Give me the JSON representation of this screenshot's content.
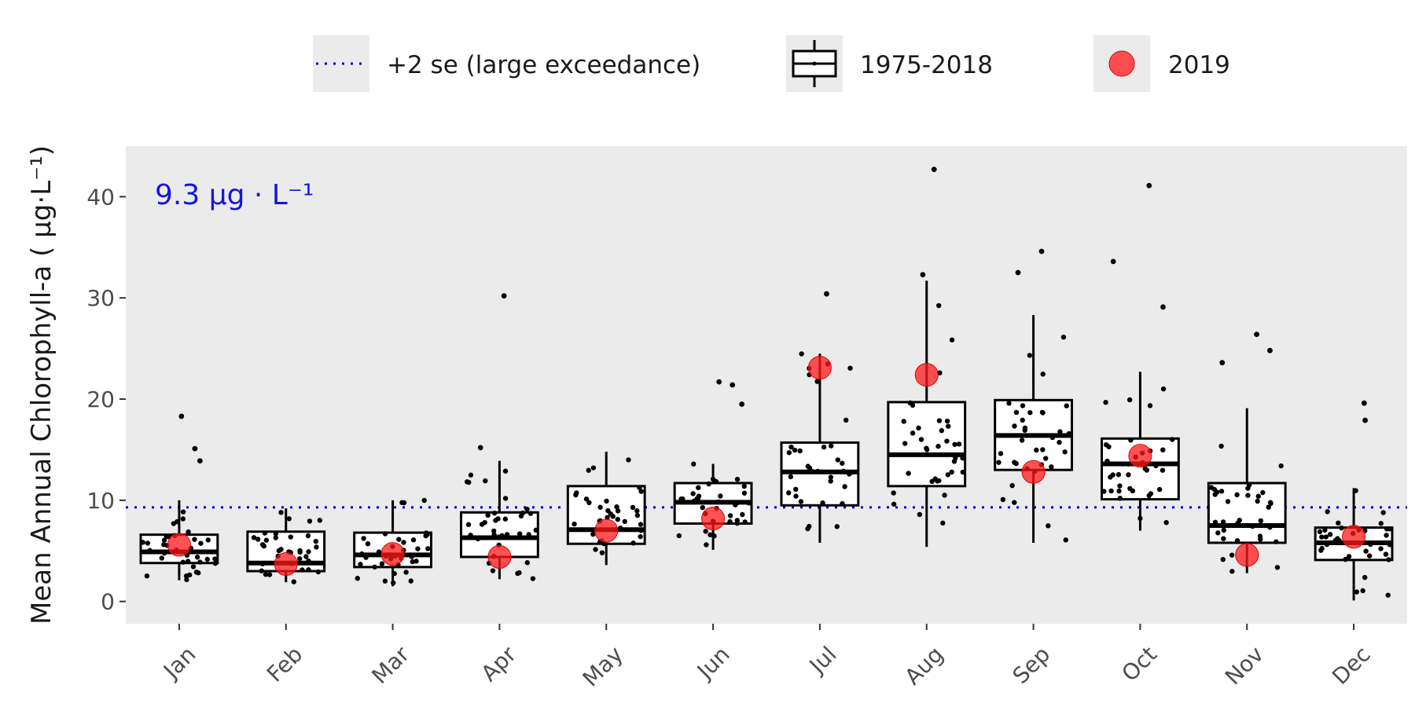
{
  "chart_data": {
    "type": "box",
    "categories": [
      "Jan",
      "Feb",
      "Mar",
      "Apr",
      "May",
      "Jun",
      "Jul",
      "Aug",
      "Sep",
      "Oct",
      "Nov",
      "Dec"
    ],
    "ylabel": "Mean Annual Chlorophyll-a ( μg·L⁻¹)",
    "ylim": [
      -2.2,
      45
    ],
    "yticks": [
      0,
      10,
      20,
      30,
      40
    ],
    "grid": false,
    "legend_position": "top",
    "legend": [
      {
        "key": "threshold",
        "label": "+2 se (large exceedance)"
      },
      {
        "key": "box",
        "label": "1975-2018"
      },
      {
        "key": "point2019",
        "label": "2019"
      }
    ],
    "threshold": {
      "value": 9.3,
      "label": "9.3 μg · L⁻¹",
      "color": "#0000cc"
    },
    "colors": {
      "panel": "#ebebeb",
      "box_fill": "#ffffff",
      "box_line": "#000000",
      "point_2019": "#ff1a1a",
      "threshold": "#0000cc",
      "annotation": "#1515e0"
    },
    "series": [
      {
        "name": "1975-2018",
        "boxes": [
          {
            "low": 2.1,
            "q1": 3.8,
            "median": 4.9,
            "q3": 6.6,
            "high": 10.0
          },
          {
            "low": 1.9,
            "q1": 3.0,
            "median": 3.8,
            "q3": 6.9,
            "high": 9.2
          },
          {
            "low": 1.5,
            "q1": 3.4,
            "median": 4.6,
            "q3": 6.8,
            "high": 10.0
          },
          {
            "low": 2.2,
            "q1": 4.4,
            "median": 6.3,
            "q3": 8.8,
            "high": 13.9
          },
          {
            "low": 3.6,
            "q1": 5.7,
            "median": 7.1,
            "q3": 11.4,
            "high": 14.8
          },
          {
            "low": 5.1,
            "q1": 7.7,
            "median": 9.8,
            "q3": 11.7,
            "high": 13.6
          },
          {
            "low": 5.8,
            "q1": 9.5,
            "median": 12.8,
            "q3": 15.7,
            "high": 24.5
          },
          {
            "low": 5.4,
            "q1": 11.4,
            "median": 14.5,
            "q3": 19.7,
            "high": 31.7
          },
          {
            "low": 5.8,
            "q1": 13.0,
            "median": 16.4,
            "q3": 19.9,
            "high": 28.3
          },
          {
            "low": 7.0,
            "q1": 10.1,
            "median": 13.6,
            "q3": 16.1,
            "high": 22.7
          },
          {
            "low": 2.8,
            "q1": 5.8,
            "median": 7.5,
            "q3": 11.7,
            "high": 19.1
          },
          {
            "low": 0.1,
            "q1": 4.1,
            "median": 5.8,
            "q3": 7.3,
            "high": 11.2
          }
        ],
        "outliers": [
          {
            "x": "Jan",
            "y": [
              18.3,
              15.1,
              13.9
            ]
          },
          {
            "x": "Apr",
            "y": [
              30.2,
              15.2
            ]
          },
          {
            "x": "Jun",
            "y": [
              21.7,
              21.4,
              19.5
            ]
          },
          {
            "x": "Jul",
            "y": [
              30.4
            ]
          },
          {
            "x": "Aug",
            "y": [
              42.7,
              32.3
            ]
          },
          {
            "x": "Sep",
            "y": [
              34.6,
              32.5
            ]
          },
          {
            "x": "Oct",
            "y": [
              41.1,
              33.6,
              29.1
            ]
          },
          {
            "x": "Nov",
            "y": [
              26.4,
              24.8,
              23.6
            ]
          },
          {
            "x": "Dec",
            "y": [
              19.6,
              17.9
            ]
          }
        ]
      },
      {
        "name": "2019",
        "values": [
          5.6,
          3.7,
          4.7,
          4.4,
          7.0,
          8.2,
          23.1,
          22.4,
          12.8,
          14.4,
          4.6,
          6.4
        ]
      }
    ]
  }
}
